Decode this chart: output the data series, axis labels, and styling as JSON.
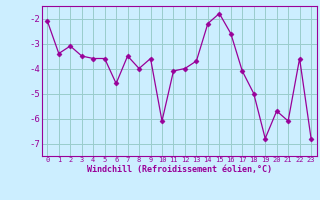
{
  "x": [
    0,
    1,
    2,
    3,
    4,
    5,
    6,
    7,
    8,
    9,
    10,
    11,
    12,
    13,
    14,
    15,
    16,
    17,
    18,
    19,
    20,
    21,
    22,
    23
  ],
  "y": [
    -2.1,
    -3.4,
    -3.1,
    -3.5,
    -3.6,
    -3.6,
    -4.6,
    -3.5,
    -4.0,
    -3.6,
    -6.1,
    -4.1,
    -4.0,
    -3.7,
    -2.2,
    -1.8,
    -2.6,
    -4.1,
    -5.0,
    -6.8,
    -5.7,
    -6.1,
    -3.6,
    -6.8
  ],
  "xlabel": "Windchill (Refroidissement éolien,°C)",
  "yticks": [
    -2,
    -3,
    -4,
    -5,
    -6,
    -7
  ],
  "ylim": [
    -7.5,
    -1.5
  ],
  "xlim": [
    -0.5,
    23.5
  ],
  "bg_color": "#cceeff",
  "grid_color": "#99cccc",
  "line_color": "#990099",
  "marker_color": "#990099",
  "xlabel_fontsize": 6.0,
  "xtick_fontsize": 5.0,
  "ytick_fontsize": 6.5
}
